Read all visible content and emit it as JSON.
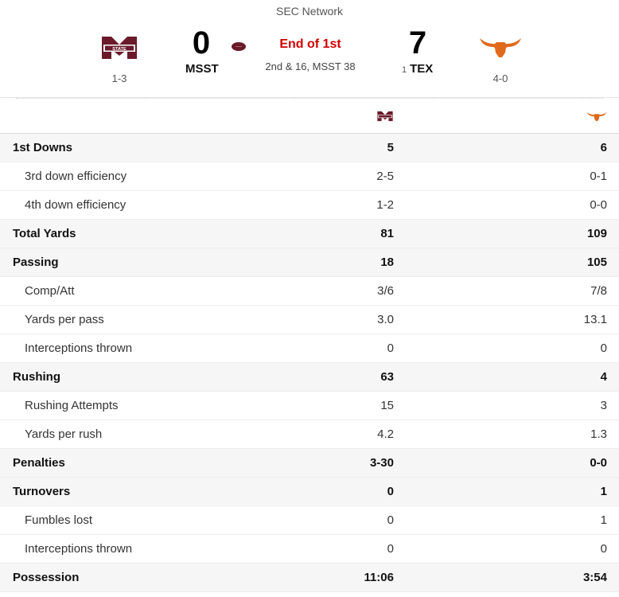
{
  "header": {
    "network": "SEC Network",
    "status": "End of 1st",
    "situation": "2nd & 16, MSST 38",
    "away": {
      "abbr": "MSST",
      "score": "0",
      "record": "1-3",
      "logo": "mississippi-state-m-logo",
      "color": "#6a1a2a"
    },
    "home": {
      "abbr": "TEX",
      "rank": "1",
      "score": "7",
      "record": "4-0",
      "logo": "texas-longhorn-logo",
      "color": "#e06a1c"
    },
    "possession_icon": "football-icon"
  },
  "stats": [
    {
      "label": "1st Downs",
      "away": "5",
      "home": "6",
      "type": "main"
    },
    {
      "label": "3rd down efficiency",
      "away": "2-5",
      "home": "0-1",
      "type": "sub"
    },
    {
      "label": "4th down efficiency",
      "away": "1-2",
      "home": "0-0",
      "type": "sub"
    },
    {
      "label": "Total Yards",
      "away": "81",
      "home": "109",
      "type": "main"
    },
    {
      "label": "Passing",
      "away": "18",
      "home": "105",
      "type": "main"
    },
    {
      "label": "Comp/Att",
      "away": "3/6",
      "home": "7/8",
      "type": "sub"
    },
    {
      "label": "Yards per pass",
      "away": "3.0",
      "home": "13.1",
      "type": "sub"
    },
    {
      "label": "Interceptions thrown",
      "away": "0",
      "home": "0",
      "type": "sub"
    },
    {
      "label": "Rushing",
      "away": "63",
      "home": "4",
      "type": "main"
    },
    {
      "label": "Rushing Attempts",
      "away": "15",
      "home": "3",
      "type": "sub"
    },
    {
      "label": "Yards per rush",
      "away": "4.2",
      "home": "1.3",
      "type": "sub"
    },
    {
      "label": "Penalties",
      "away": "3-30",
      "home": "0-0",
      "type": "main"
    },
    {
      "label": "Turnovers",
      "away": "0",
      "home": "1",
      "type": "main"
    },
    {
      "label": "Fumbles lost",
      "away": "0",
      "home": "1",
      "type": "sub"
    },
    {
      "label": "Interceptions thrown",
      "away": "0",
      "home": "0",
      "type": "sub"
    },
    {
      "label": "Possession",
      "away": "11:06",
      "home": "3:54",
      "type": "main"
    }
  ]
}
